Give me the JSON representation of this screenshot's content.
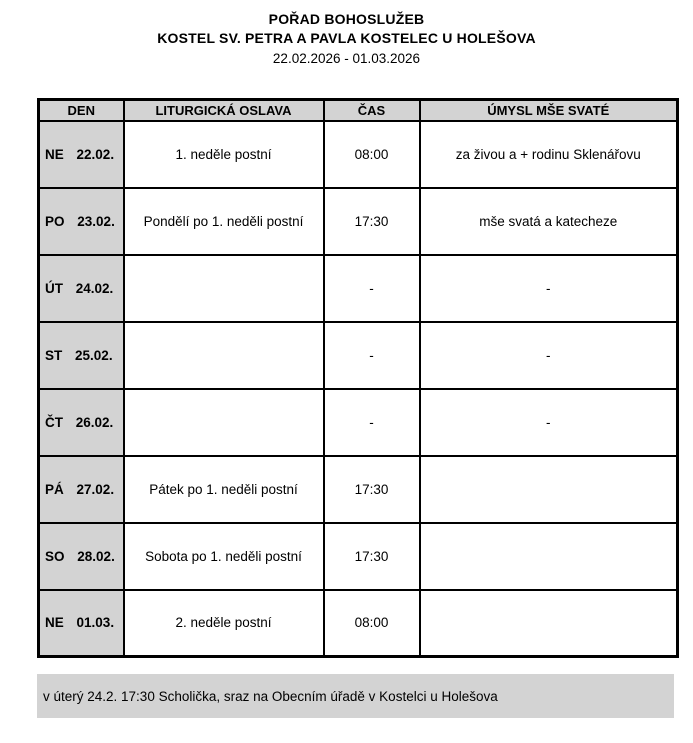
{
  "header": {
    "title_line1": "POŘAD BOHOSLUŽEB",
    "title_line2": "KOSTEL SV. PETRA A PAVLA KOSTELEC U HOLEŠOVA",
    "date_range": "22.02.2026 - 01.03.2026"
  },
  "table": {
    "columns": [
      "DEN",
      "LITURGICKÁ OSLAVA",
      "ČAS",
      "ÚMYSL MŠE SVATÉ"
    ],
    "rows": [
      {
        "day": "NE",
        "date": "22.02.",
        "celebration": "1. neděle postní",
        "time": "08:00",
        "intention": "za živou a + rodinu Sklenářovu"
      },
      {
        "day": "PO",
        "date": "23.02.",
        "celebration": "Pondělí po 1. neděli postní",
        "time": "17:30",
        "intention": "mše svatá a katecheze"
      },
      {
        "day": "ÚT",
        "date": "24.02.",
        "celebration": "",
        "time": "-",
        "intention": "-"
      },
      {
        "day": "ST",
        "date": "25.02.",
        "celebration": "",
        "time": "-",
        "intention": "-"
      },
      {
        "day": "ČT",
        "date": "26.02.",
        "celebration": "",
        "time": "-",
        "intention": "-"
      },
      {
        "day": "PÁ",
        "date": "27.02.",
        "celebration": "Pátek po 1. neděli postní",
        "time": "17:30",
        "intention": ""
      },
      {
        "day": "SO",
        "date": "28.02.",
        "celebration": "Sobota po 1. neděli postní",
        "time": "17:30",
        "intention": ""
      },
      {
        "day": "NE",
        "date": "01.03.",
        "celebration": "2. neděle postní",
        "time": "08:00",
        "intention": ""
      }
    ]
  },
  "footer": {
    "note": "v úterý 24.2. 17:30 Scholička, sraz na Obecním úřadě v Kostelci u Holešova"
  },
  "colors": {
    "header_bg": "#d3d3d3",
    "note_bg": "#d3d3d3",
    "border": "#000000"
  }
}
